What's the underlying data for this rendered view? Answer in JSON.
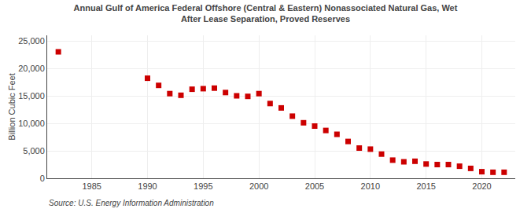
{
  "chart_data": {
    "type": "scatter",
    "title": "Annual Gulf of America Federal Offshore (Central & Eastern) Nonassociated Natural Gas, Wet",
    "subtitle": "After Lease Separation, Proved Reserves",
    "ylabel": "Billion Cubic Feet",
    "annotations": [
      "Source: U.S. Energy Information Administration"
    ],
    "x": [
      1982,
      1990,
      1991,
      1992,
      1993,
      1994,
      1995,
      1996,
      1997,
      1998,
      1999,
      2000,
      2001,
      2002,
      2003,
      2004,
      2005,
      2006,
      2007,
      2008,
      2009,
      2010,
      2011,
      2012,
      2013,
      2014,
      2015,
      2016,
      2017,
      2018,
      2019,
      2020,
      2021,
      2022
    ],
    "values": [
      23000,
      18200,
      16900,
      15400,
      15100,
      16200,
      16300,
      16400,
      15600,
      15000,
      14900,
      15400,
      13600,
      12800,
      11300,
      10100,
      9500,
      8700,
      8000,
      6700,
      5500,
      5300,
      4400,
      3300,
      3000,
      3100,
      2600,
      2500,
      2500,
      2200,
      1800,
      1200,
      1100,
      1100
    ],
    "color": "#cc0000",
    "marker": "square",
    "xlim": [
      1981,
      2023
    ],
    "xticks": [
      1985,
      1990,
      1995,
      2000,
      2005,
      2010,
      2015,
      2020
    ],
    "ylim": [
      0,
      26000
    ],
    "yticks": [
      0,
      {
        "value": 5000,
        "label": "5,000"
      },
      {
        "value": 10000,
        "label": "10,000"
      },
      {
        "value": 15000,
        "label": "15,000"
      },
      {
        "value": 20000,
        "label": "20,000"
      },
      {
        "value": 25000,
        "label": "25,000"
      }
    ],
    "grid": true
  }
}
